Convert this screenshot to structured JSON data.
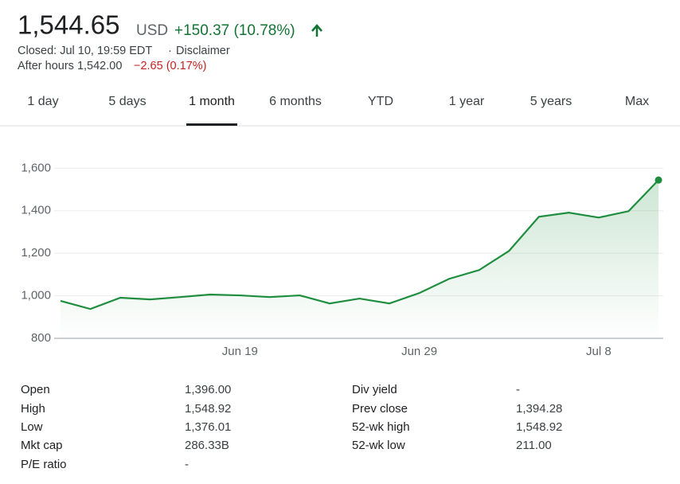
{
  "header": {
    "price": "1,544.65",
    "currency": "USD",
    "change": "+150.37 (10.78%)",
    "closed": "Closed: Jul 10, 19:59 EDT",
    "separator": "·",
    "disclaimer": "Disclaimer",
    "after_hours_label": "After hours 1,542.00",
    "after_hours_change": "−2.65 (0.17%)"
  },
  "tabs": {
    "items": [
      "1 day",
      "5 days",
      "1 month",
      "6 months",
      "YTD",
      "1 year",
      "5 years",
      "Max"
    ],
    "selected": 2
  },
  "chart_data": {
    "type": "line",
    "categories": [
      null,
      null,
      null,
      null,
      null,
      null,
      "Jun 19",
      null,
      null,
      null,
      null,
      null,
      "Jun 29",
      null,
      null,
      null,
      null,
      null,
      "Jul 8",
      null,
      null
    ],
    "values": [
      976,
      938,
      991,
      983,
      994,
      1006,
      1002,
      994,
      1002,
      964,
      987,
      964,
      1013,
      1080,
      1121,
      1211,
      1372,
      1391,
      1368,
      1398,
      1544.65
    ],
    "color": "#1e8e3e",
    "ylim": [
      800,
      1650
    ],
    "yticks": [
      800,
      {
        "value": 1000,
        "label": "1,000"
      },
      {
        "value": 1200,
        "label": "1,200"
      },
      {
        "value": 1400,
        "label": "1,400"
      },
      {
        "value": 1600,
        "label": "1,600"
      }
    ],
    "grid": true
  },
  "stats": {
    "rows": [
      [
        "Open",
        "1,396.00",
        "Div yield",
        "-"
      ],
      [
        "High",
        "1,548.92",
        "Prev close",
        "1,394.28"
      ],
      [
        "Low",
        "1,376.01",
        "52-wk high",
        "1,548.92"
      ],
      [
        "Mkt cap",
        "286.33B",
        "52-wk low",
        "211.00"
      ],
      [
        "P/E ratio",
        "-"
      ]
    ]
  }
}
